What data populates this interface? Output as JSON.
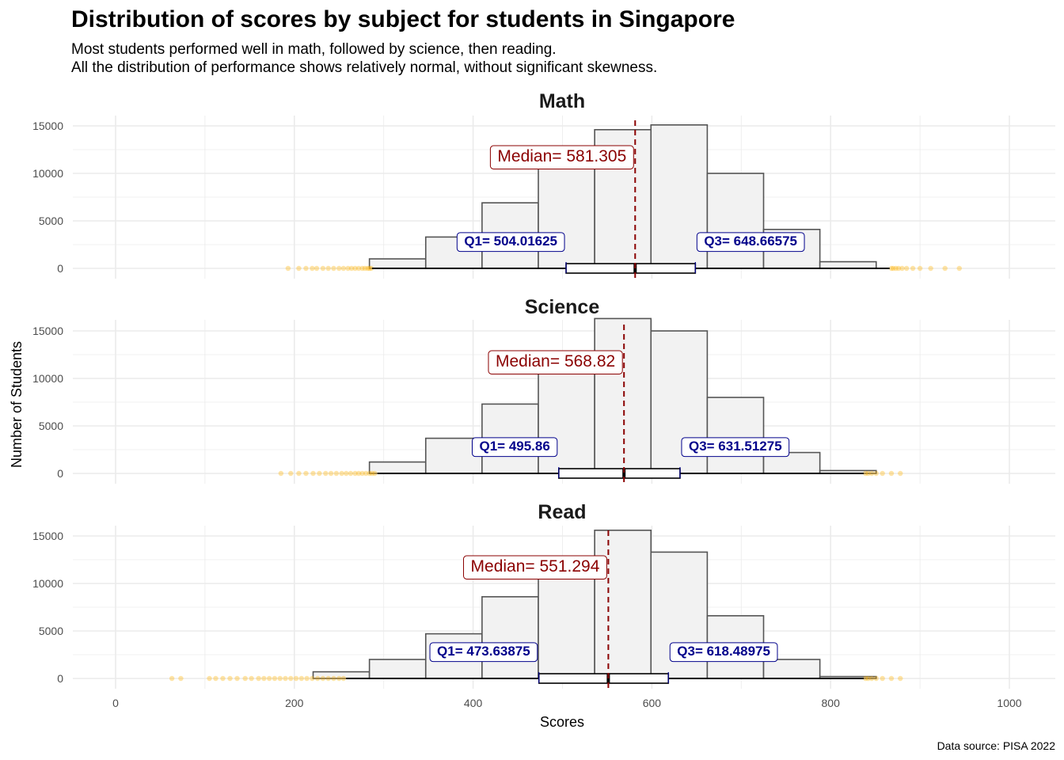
{
  "chart_data": {
    "type": "histogram",
    "title": "Distribution of scores by subject for students in Singapore",
    "subtitle_lines": [
      "Most students performed well in math, followed by science, then reading.",
      "All the distribution of performance shows relatively normal, without significant skewness."
    ],
    "xlabel": "Scores",
    "ylabel": "Number of Students",
    "caption": "Data source: PISA 2022",
    "xlim": [
      -50,
      1050
    ],
    "ylim": [
      0,
      16500
    ],
    "x_ticks": [
      0,
      200,
      400,
      600,
      800,
      1000
    ],
    "y_ticks": [
      0,
      5000,
      10000,
      15000
    ],
    "bin_edges": [
      32,
      95,
      158,
      221,
      284,
      347,
      410,
      473,
      536,
      599,
      662,
      725,
      788,
      851,
      914,
      977
    ],
    "colors": {
      "bar_fill": "#f2f2f2",
      "bar_stroke": "#555555",
      "median": "#8b0000",
      "quartile": "#00008b",
      "outlier": "#ffb300",
      "grid": "#ebebeb"
    },
    "panels": [
      {
        "name": "Math",
        "counts": [
          0,
          0,
          0,
          0,
          1000,
          3300,
          6900,
          12000,
          14600,
          15100,
          10000,
          4100,
          700,
          0,
          0
        ],
        "median": 581.305,
        "median_label": "Median= 581.305",
        "q1": 504.01625,
        "q1_label": "Q1= 504.01625",
        "q3": 648.66575,
        "q3_label": "Q3= 648.66575",
        "whisker_low": 287,
        "whisker_high": 866,
        "outliers": [
          193,
          205,
          213,
          220,
          225,
          232,
          238,
          244,
          250,
          255,
          260,
          264,
          268,
          272,
          276,
          279,
          282,
          284,
          286,
          868,
          870,
          873,
          876,
          880,
          885,
          892,
          900,
          912,
          928,
          944
        ]
      },
      {
        "name": "Science",
        "counts": [
          0,
          0,
          0,
          0,
          1200,
          3700,
          7300,
          11600,
          16300,
          15000,
          8000,
          2200,
          300,
          0,
          0
        ],
        "median": 568.82,
        "median_label": "Median= 568.82",
        "q1": 495.86,
        "q1_label": "Q1= 495.86",
        "q3": 631.51275,
        "q3_label": "Q3= 631.51275",
        "whisker_low": 293,
        "whisker_high": 837,
        "outliers": [
          185,
          196,
          205,
          213,
          221,
          228,
          235,
          241,
          247,
          253,
          258,
          263,
          268,
          272,
          276,
          280,
          284,
          287,
          290,
          839,
          842,
          846,
          851,
          858,
          868,
          878
        ]
      },
      {
        "name": "Read",
        "counts": [
          0,
          0,
          0,
          700,
          2000,
          4700,
          8600,
          11900,
          15600,
          13300,
          6600,
          2000,
          200,
          0,
          0
        ],
        "median": 551.294,
        "median_label": "Median= 551.294",
        "q1": 473.63875,
        "q1_label": "Q1= 473.63875",
        "q3": 618.48975,
        "q3_label": "Q3= 618.48975",
        "whisker_low": 258,
        "whisker_high": 837,
        "outliers": [
          63,
          73,
          105,
          112,
          120,
          128,
          136,
          145,
          152,
          160,
          166,
          172,
          178,
          184,
          190,
          196,
          202,
          208,
          214,
          220,
          226,
          232,
          238,
          244,
          250,
          255,
          839,
          842,
          846,
          851,
          858,
          868,
          878
        ]
      }
    ]
  }
}
